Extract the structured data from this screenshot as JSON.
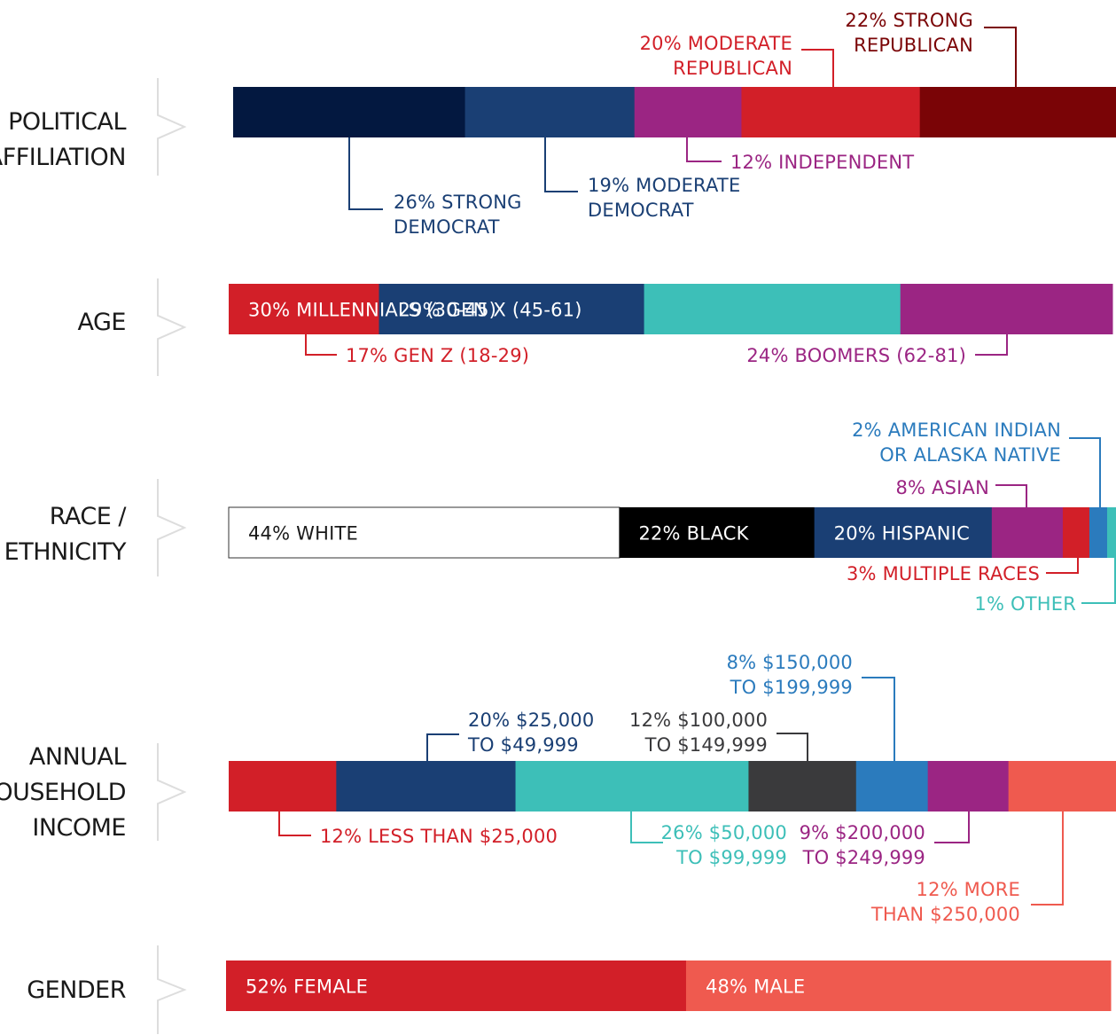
{
  "chart_data": [
    {
      "type": "stacked-bar",
      "category": "POLITICAL AFFILIATION",
      "segments": [
        {
          "label": "26% STRONG DEMOCRAT",
          "value": 26,
          "color": "#031840"
        },
        {
          "label": "19% MODERATE DEMOCRAT",
          "value": 19,
          "color": "#1a3f74"
        },
        {
          "label": "12% INDEPENDENT",
          "value": 12,
          "color": "#9b2583"
        },
        {
          "label": "20% MODERATE REPUBLICAN",
          "value": 20,
          "color": "#d21f28"
        },
        {
          "label": "22% STRONG REPUBLICAN",
          "value": 22,
          "color": "#7a0406"
        }
      ]
    },
    {
      "type": "stacked-bar",
      "category": "AGE",
      "segments": [
        {
          "label": "17% GEN Z (18-29)",
          "value": 17,
          "color": "#d21f28"
        },
        {
          "label": "30% MILLENNIALS (30-45)",
          "value": 30,
          "color": "#1a3f74"
        },
        {
          "label": "29% GEN X (45-61)",
          "value": 29,
          "color": "#3dbfb8"
        },
        {
          "label": "24% BOOMERS (62-81)",
          "value": 24,
          "color": "#9b2583"
        }
      ]
    },
    {
      "type": "stacked-bar",
      "category": "RACE / ETHNICITY",
      "segments": [
        {
          "label": "44% WHITE",
          "value": 44,
          "color": "#ffffff"
        },
        {
          "label": "22% BLACK",
          "value": 22,
          "color": "#000000"
        },
        {
          "label": "20% HISPANIC",
          "value": 20,
          "color": "#1a3f74"
        },
        {
          "label": "8% ASIAN",
          "value": 8,
          "color": "#9b2583"
        },
        {
          "label": "3% MULTIPLE RACES",
          "value": 3,
          "color": "#d21f28"
        },
        {
          "label": "2% AMERICAN INDIAN OR ALASKA NATIVE",
          "value": 2,
          "color": "#2b7bbd"
        },
        {
          "label": "1% OTHER",
          "value": 1,
          "color": "#3dbfb8"
        }
      ]
    },
    {
      "type": "stacked-bar",
      "category": "ANNUAL HOUSEHOLD INCOME",
      "segments": [
        {
          "label": "12% LESS THAN $25,000",
          "value": 12,
          "color": "#d21f28"
        },
        {
          "label": "20% $25,000 TO $49,999",
          "value": 20,
          "color": "#1a3f74"
        },
        {
          "label": "26% $50,000 TO $99,999",
          "value": 26,
          "color": "#3dbfb8"
        },
        {
          "label": "12% $100,000 TO $149,999",
          "value": 12,
          "color": "#3a3a3c"
        },
        {
          "label": "8% $150,000 TO $199,999",
          "value": 8,
          "color": "#2b7bbd"
        },
        {
          "label": "9% $200,000 TO $249,999",
          "value": 9,
          "color": "#9b2583"
        },
        {
          "label": "12% MORE THAN $250,000",
          "value": 12,
          "color": "#ef5a4f"
        }
      ]
    },
    {
      "type": "stacked-bar",
      "category": "GENDER",
      "segments": [
        {
          "label": "52% FEMALE",
          "value": 52,
          "color": "#d21f28"
        },
        {
          "label": "48% MALE",
          "value": 48,
          "color": "#ef5a4f"
        }
      ]
    }
  ],
  "rows": [
    {
      "label_lines": [
        "POLITICAL",
        "AFFILIATION"
      ],
      "annotations": [
        {
          "lines": [
            "22% STRONG",
            "REPUBLICAN"
          ],
          "color": "#7a0406"
        },
        {
          "lines": [
            "20% MODERATE",
            "REPUBLICAN"
          ],
          "color": "#d21f28"
        },
        {
          "lines": [
            "12% INDEPENDENT"
          ],
          "color": "#9b2583"
        },
        {
          "lines": [
            "19% MODERATE",
            "DEMOCRAT"
          ],
          "color": "#1a3f74"
        },
        {
          "lines": [
            "26% STRONG",
            "DEMOCRAT"
          ],
          "color": "#1a3f74"
        }
      ]
    },
    {
      "label_lines": [
        "AGE"
      ],
      "inbar": [
        {
          "text": "30% MILLENNIALS (30-45)",
          "color": "#ffffff"
        },
        {
          "text": "29% GEN X (45-61)",
          "color": "#ffffff"
        }
      ],
      "annotations": [
        {
          "lines": [
            "17% GEN Z (18-29)"
          ],
          "color": "#d21f28"
        },
        {
          "lines": [
            "24% BOOMERS (62-81)"
          ],
          "color": "#9b2583"
        }
      ]
    },
    {
      "label_lines": [
        "RACE /",
        "ETHNICITY"
      ],
      "inbar": [
        {
          "text": "44% WHITE",
          "color": "#1a1a1a"
        },
        {
          "text": "22% BLACK",
          "color": "#ffffff"
        },
        {
          "text": "20% HISPANIC",
          "color": "#ffffff"
        }
      ],
      "annotations": [
        {
          "lines": [
            "2% AMERICAN INDIAN",
            "OR ALASKA NATIVE"
          ],
          "color": "#2b7bbd"
        },
        {
          "lines": [
            "8% ASIAN"
          ],
          "color": "#9b2583"
        },
        {
          "lines": [
            "3% MULTIPLE RACES"
          ],
          "color": "#d21f28"
        },
        {
          "lines": [
            "1% OTHER"
          ],
          "color": "#3dbfb8"
        }
      ]
    },
    {
      "label_lines": [
        "ANNUAL",
        "HOUSEHOLD",
        "INCOME"
      ],
      "annotations": [
        {
          "lines": [
            "8% $150,000",
            "TO $199,999"
          ],
          "color": "#2b7bbd"
        },
        {
          "lines": [
            "20% $25,000",
            "TO $49,999"
          ],
          "color": "#1a3f74"
        },
        {
          "lines": [
            "12% $100,000",
            "TO $149,999"
          ],
          "color": "#3a3a3c"
        },
        {
          "lines": [
            "12% LESS THAN $25,000"
          ],
          "color": "#d21f28"
        },
        {
          "lines": [
            "26% $50,000",
            "TO $99,999"
          ],
          "color": "#3dbfb8"
        },
        {
          "lines": [
            "9% $200,000",
            "TO $249,999"
          ],
          "color": "#9b2583"
        },
        {
          "lines": [
            "12% MORE",
            "THAN $250,000"
          ],
          "color": "#ef5a4f"
        }
      ]
    },
    {
      "label_lines": [
        "GENDER"
      ],
      "inbar": [
        {
          "text": "52% FEMALE",
          "color": "#ffffff"
        },
        {
          "text": "48% MALE",
          "color": "#ffffff"
        }
      ],
      "annotations": []
    }
  ]
}
